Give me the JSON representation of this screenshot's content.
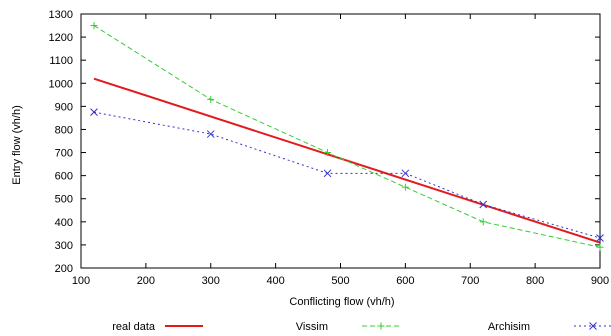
{
  "chart_data": {
    "type": "line",
    "title": "",
    "xlabel": "Conflicting flow (vh/h)",
    "ylabel": "Entry flow (vh/h)",
    "xlim": [
      100,
      900
    ],
    "ylim": [
      200,
      1300
    ],
    "xticks": [
      100,
      200,
      300,
      400,
      500,
      600,
      700,
      800,
      900
    ],
    "yticks": [
      200,
      300,
      400,
      500,
      600,
      700,
      800,
      900,
      1000,
      1100,
      1200,
      1300
    ],
    "grid": false,
    "legend_position": "bottom",
    "series": [
      {
        "name": "real data",
        "color": "#e31a1c",
        "style": "solid",
        "marker": "none",
        "x": [
          120,
          900
        ],
        "y": [
          1020,
          310
        ]
      },
      {
        "name": "Vissim",
        "color": "#33cc33",
        "style": "dashed",
        "marker": "plus",
        "x": [
          120,
          300,
          480,
          600,
          720,
          900
        ],
        "y": [
          1250,
          930,
          700,
          550,
          400,
          290
        ]
      },
      {
        "name": "Archisim",
        "color": "#3333cc",
        "style": "dotted",
        "marker": "cross",
        "x": [
          120,
          300,
          480,
          600,
          720,
          900
        ],
        "y": [
          875,
          780,
          610,
          610,
          475,
          330
        ]
      }
    ]
  }
}
